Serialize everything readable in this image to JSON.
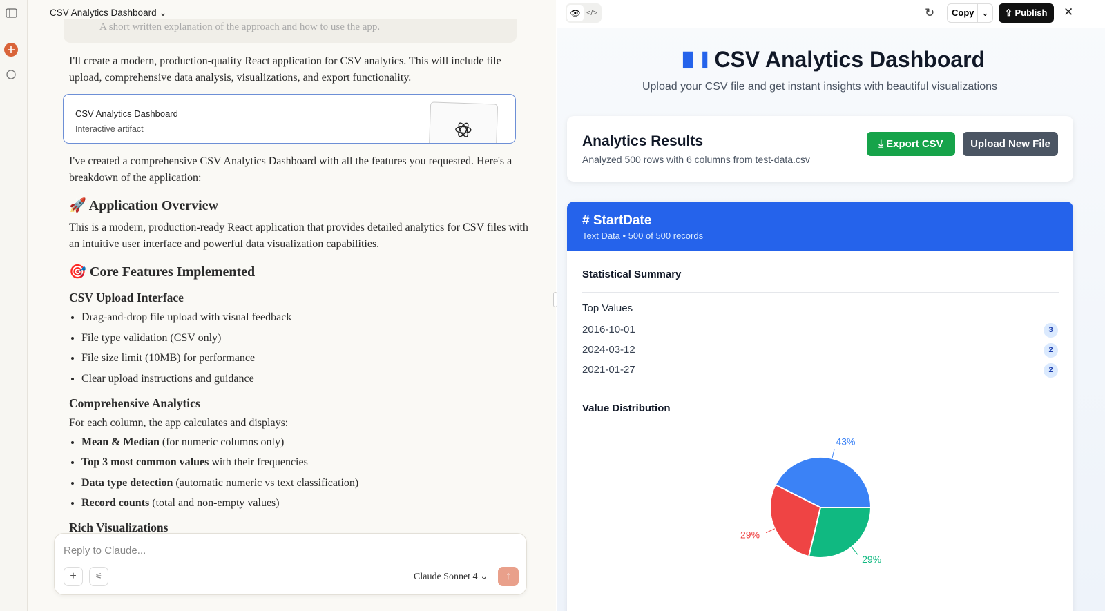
{
  "header": {
    "title": "CSV Analytics Dashboard"
  },
  "chat": {
    "faded_line": "A short written explanation of the approach and how to use the app.",
    "intro": "I'll create a modern, production-quality React application for CSV analytics. This will include file upload, comprehensive data analysis, visualizations, and export functionality.",
    "artifact": {
      "title": "CSV Analytics Dashboard",
      "subtitle": "Interactive artifact"
    },
    "summary": "I've created a comprehensive CSV Analytics Dashboard with all the features you requested. Here's a breakdown of the application:",
    "blocks": [
      {
        "h2": "🚀 Application Overview"
      },
      {
        "p": "This is a modern, production-ready React application that provides detailed analytics for CSV files with an intuitive user interface and powerful data visualization capabilities."
      },
      {
        "h2": "🎯 Core Features Implemented"
      },
      {
        "h3": "CSV Upload Interface"
      },
      {
        "list": [
          "Drag-and-drop file upload with visual feedback",
          "File type validation (CSV only)",
          "File size limit (10MB) for performance",
          "Clear upload instructions and guidance"
        ]
      },
      {
        "h3": "Comprehensive Analytics"
      },
      {
        "p": "For each column, the app calculates and displays:"
      },
      {
        "list": [
          {
            "bold": "Mean & Median",
            "text": "(for numeric columns only)"
          },
          {
            "bold": "Top 3 most common values",
            "text": "with their frequencies"
          },
          {
            "bold": "Data type detection",
            "text": "(automatic numeric vs text classification)"
          },
          {
            "bold": "Record counts",
            "text": "(total and non-empty values)"
          }
        ]
      },
      {
        "h3": "Rich Visualizations"
      }
    ]
  },
  "composer": {
    "placeholder": "Reply to Claude...",
    "model": "Claude Sonnet 4"
  },
  "toolbar": {
    "copy": "Copy",
    "publish": "Publish"
  },
  "app": {
    "title": "CSV Analytics Dashboard",
    "subtitle": "Upload your CSV file and get instant insights with beautiful visualizations",
    "results": {
      "title": "Analytics Results",
      "description": "Analyzed 500 rows with 6 columns from test-data.csv",
      "export": "Export CSV",
      "upload": "Upload New File"
    },
    "column": {
      "name": "StartDate",
      "meta": "Text Data • 500 of 500 records",
      "summary_title": "Statistical Summary",
      "top_values_title": "Top Values",
      "top_values": [
        {
          "value": "2016-10-01",
          "count": 3
        },
        {
          "value": "2024-03-12",
          "count": 2
        },
        {
          "value": "2021-01-27",
          "count": 2
        }
      ],
      "distribution_title": "Value Distribution",
      "chart_data": {
        "type": "pie",
        "values": [
          43,
          29,
          29
        ],
        "value_labels": [
          "43%",
          "29%",
          "29%"
        ],
        "colors": [
          "#3b82f6",
          "#ef4444",
          "#10b981"
        ]
      }
    }
  }
}
